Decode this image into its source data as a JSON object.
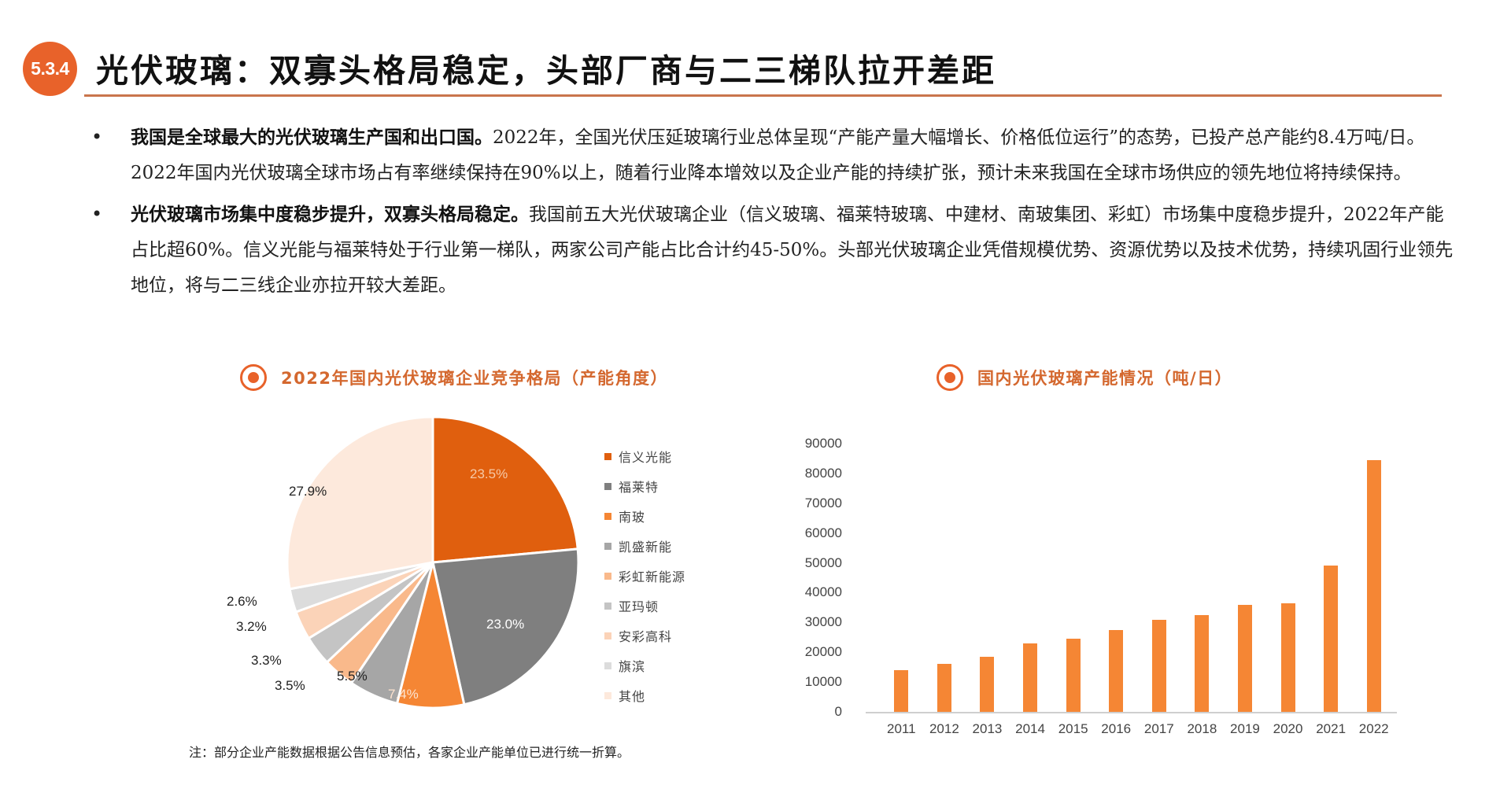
{
  "header": {
    "section_number": "5.3.4",
    "title": "光伏玻璃：双寡头格局稳定，头部厂商与二三梯队拉开差距"
  },
  "bullets": [
    {
      "bold": "我国是全球最大的光伏玻璃生产国和出口国。",
      "text": "2022年，全国光伏压延玻璃行业总体呈现“产能产量大幅增长、价格低位运行”的态势，已投产总产能约8.4万吨/日。2022年国内光伏玻璃全球市场占有率继续保持在90%以上，随着行业降本增效以及企业产能的持续扩张，预计未来我国在全球市场供应的领先地位将持续保持。"
    },
    {
      "bold": "光伏玻璃市场集中度稳步提升，双寡头格局稳定。",
      "text": "我国前五大光伏玻璃企业（信义玻璃、福莱特玻璃、中建材、南玻集团、彩虹）市场集中度稳步提升，2022年产能占比超60%。信义光能与福莱特处于行业第一梯队，两家公司产能占比合计约45-50%。头部光伏玻璃企业凭借规模优势、资源优势以及技术优势，持续巩固行业领先地位，将与二三线企业亦拉开较大差距。"
    }
  ],
  "left_panel": {
    "title": "2022年国内光伏玻璃企业竞争格局（产能角度）",
    "footnote": "注：部分企业产能数据根据公告信息预估，各家企业产能单位已进行统一折算。"
  },
  "right_panel": {
    "title": "国内光伏玻璃产能情况（吨/日）"
  },
  "chart_data": [
    {
      "type": "pie",
      "title": "2022年国内光伏玻璃企业竞争格局（产能角度）",
      "categories": [
        "信义光能",
        "福莱特",
        "南玻",
        "凯盛新能",
        "彩虹新能源",
        "亚玛顿",
        "安彩高科",
        "旗滨",
        "其他"
      ],
      "values": [
        23.5,
        23.0,
        7.4,
        5.5,
        3.5,
        3.3,
        3.2,
        2.6,
        27.9
      ],
      "labels": [
        "23.5%",
        "23.0%",
        "7.4%",
        "5.5%",
        "3.5%",
        "3.3%",
        "3.2%",
        "2.6%",
        "27.9%"
      ],
      "colors": [
        "#e05f0e",
        "#7f7f7f",
        "#f58634",
        "#a6a6a6",
        "#f9b98b",
        "#c4c4c4",
        "#fbd3b8",
        "#dcdcdc",
        "#fde9dc"
      ],
      "legend_position": "right"
    },
    {
      "type": "bar",
      "title": "国内光伏玻璃产能情况（吨/日）",
      "categories": [
        "2011",
        "2012",
        "2013",
        "2014",
        "2015",
        "2016",
        "2017",
        "2018",
        "2019",
        "2020",
        "2021",
        "2022"
      ],
      "values": [
        14000,
        16000,
        18500,
        23000,
        24500,
        27500,
        31000,
        32500,
        36000,
        36500,
        49000,
        84500
      ],
      "ylim": [
        0,
        90000
      ],
      "yticks": [
        "0",
        "10000",
        "20000",
        "30000",
        "40000",
        "50000",
        "60000",
        "70000",
        "80000",
        "90000"
      ],
      "xlabel": "",
      "ylabel": "",
      "bar_color": "#f58634",
      "grid": false
    }
  ]
}
